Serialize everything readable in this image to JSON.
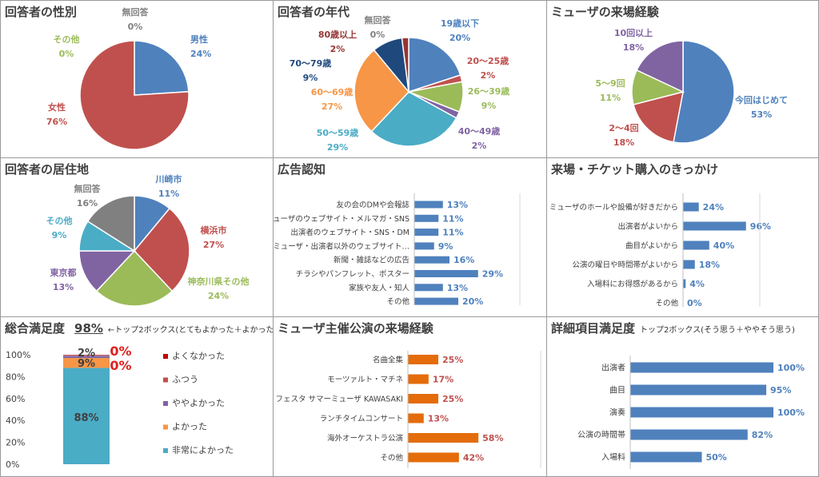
{
  "colors": {
    "blue": "#4f81bd",
    "red": "#c0504d",
    "green": "#9bbb59",
    "purple": "#8064a2",
    "teal": "#4bacc6",
    "orange": "#f79646",
    "navy": "#1f497d",
    "maroon": "#953735",
    "gray": "#808080",
    "darkorange": "#e46c0a"
  },
  "charts": {
    "gender": {
      "title": "回答者の性別",
      "chart_data": {
        "type": "pie",
        "title": "回答者の性別",
        "slices": [
          {
            "label": "男性",
            "value": 24,
            "pct": "24%",
            "color": "#4f81bd"
          },
          {
            "label": "女性",
            "value": 76,
            "pct": "76%",
            "color": "#c0504d"
          },
          {
            "label": "その他",
            "value": 0,
            "pct": "0%",
            "color": "#9bbb59"
          },
          {
            "label": "無回答",
            "value": 0,
            "pct": "0%",
            "color": "#808080"
          }
        ]
      }
    },
    "age": {
      "title": "回答者の年代",
      "chart_data": {
        "type": "pie",
        "title": "回答者の年代",
        "slices": [
          {
            "label": "19歳以下",
            "value": 20,
            "pct": "20%",
            "color": "#4f81bd"
          },
          {
            "label": "20～25歳",
            "value": 2,
            "pct": "2%",
            "color": "#c0504d"
          },
          {
            "label": "26～39歳",
            "value": 9,
            "pct": "9%",
            "color": "#9bbb59"
          },
          {
            "label": "40～49歳",
            "value": 2,
            "pct": "2%",
            "color": "#8064a2"
          },
          {
            "label": "50～59歳",
            "value": 29,
            "pct": "29%",
            "color": "#4bacc6"
          },
          {
            "label": "60～69歳",
            "value": 27,
            "pct": "27%",
            "color": "#f79646"
          },
          {
            "label": "70～79歳",
            "value": 9,
            "pct": "9%",
            "color": "#1f497d"
          },
          {
            "label": "80歳以上",
            "value": 2,
            "pct": "2%",
            "color": "#953735"
          },
          {
            "label": "無回答",
            "value": 0,
            "pct": "0%",
            "color": "#808080"
          }
        ]
      }
    },
    "visits": {
      "title": "ミューザの来場経験",
      "chart_data": {
        "type": "pie",
        "title": "ミューザの来場経験",
        "slices": [
          {
            "label": "今回はじめて",
            "value": 53,
            "pct": "53%",
            "color": "#4f81bd"
          },
          {
            "label": "2～4回",
            "value": 18,
            "pct": "18%",
            "color": "#c0504d"
          },
          {
            "label": "5～9回",
            "value": 11,
            "pct": "11%",
            "color": "#9bbb59"
          },
          {
            "label": "10回以上",
            "value": 18,
            "pct": "18%",
            "color": "#8064a2"
          }
        ]
      }
    },
    "residence": {
      "title": "回答者の居住地",
      "chart_data": {
        "type": "pie",
        "title": "回答者の居住地",
        "slices": [
          {
            "label": "川崎市",
            "value": 11,
            "pct": "11%",
            "color": "#4f81bd"
          },
          {
            "label": "横浜市",
            "value": 27,
            "pct": "27%",
            "color": "#c0504d"
          },
          {
            "label": "神奈川県その他",
            "value": 24,
            "pct": "24%",
            "color": "#9bbb59"
          },
          {
            "label": "東京都",
            "value": 13,
            "pct": "13%",
            "color": "#8064a2"
          },
          {
            "label": "その他",
            "value": 9,
            "pct": "9%",
            "color": "#4bacc6"
          },
          {
            "label": "無回答",
            "value": 16,
            "pct": "16%",
            "color": "#808080"
          }
        ]
      }
    },
    "ads": {
      "title": "広告認知",
      "chart_data": {
        "type": "bar",
        "title": "広告認知",
        "xlim": [
          0,
          100
        ],
        "color": "#4f81bd",
        "categories": [
          "友の会のDMや会報誌",
          "ミューザのウェブサイト・メルマガ・SNS",
          "出演者のウェブサイト・SNS・DM",
          "ミューザ・出演者以外のウェブサイト…",
          "新聞・雑誌などの広告",
          "チラシやパンフレット、ポスター",
          "家族や友人・知人",
          "その他"
        ],
        "values": [
          13,
          11,
          11,
          9,
          16,
          29,
          13,
          20
        ],
        "labels": [
          "13%",
          "11%",
          "11%",
          "9%",
          "16%",
          "29%",
          "13%",
          "20%"
        ]
      }
    },
    "trigger": {
      "title": "来場・チケット購入のきっかけ",
      "chart_data": {
        "type": "bar",
        "title": "来場・チケット購入のきっかけ",
        "xlim": [
          0,
          100
        ],
        "color": "#4f81bd",
        "categories": [
          "ミューザのホールや設備が好きだから",
          "出演者がよいから",
          "曲目がよいから",
          "公演の曜日や時間帯がよいから",
          "入場料にお得感があるから",
          "その他"
        ],
        "values": [
          24,
          96,
          40,
          18,
          4,
          0
        ],
        "labels": [
          "24%",
          "96%",
          "40%",
          "18%",
          "4%",
          "0%"
        ]
      }
    },
    "overall": {
      "title": "総合満足度",
      "headline": "98%",
      "subtitle": "←トップ2ボックス(とてもよかった＋よかった)",
      "chart_data": {
        "type": "stacked-bar",
        "title": "総合満足度",
        "ylim": [
          0,
          100
        ],
        "yticks": [
          "0%",
          "20%",
          "40%",
          "60%",
          "80%",
          "100%"
        ],
        "series": [
          {
            "name": "非常によかった",
            "value": 88,
            "label": "88%",
            "color": "#4bacc6"
          },
          {
            "name": "よかった",
            "value": 9,
            "label": "9%",
            "color": "#f79646"
          },
          {
            "name": "ややよかった",
            "value": 2,
            "label": "2%",
            "color": "#8064a2"
          },
          {
            "name": "ふつう",
            "value": 0,
            "label": "0%",
            "color": "#c0504d"
          },
          {
            "name": "よくなかった",
            "value": 0,
            "label": "0%",
            "color": "#c00000"
          }
        ]
      }
    },
    "muza": {
      "title": "ミューザ主催公演の来場経験",
      "chart_data": {
        "type": "bar",
        "title": "ミューザ主催公演の来場経験",
        "xlim": [
          0,
          100
        ],
        "color": "#e46c0a",
        "categories": [
          "名曲全集",
          "モーツァルト・マチネ",
          "フェスタ サマーミューザ KAWASAKI",
          "ランチタイムコンサート",
          "海外オーケストラ公演",
          "その他"
        ],
        "values": [
          25,
          17,
          25,
          13,
          58,
          42
        ],
        "labels": [
          "25%",
          "17%",
          "25%",
          "13%",
          "58%",
          "42%"
        ]
      }
    },
    "detail": {
      "title": "詳細項目満足度",
      "subtitle": "トップ2ボックス(そう思う＋ややそう思う)",
      "chart_data": {
        "type": "bar",
        "title": "詳細項目満足度",
        "xlim": [
          0,
          100
        ],
        "color": "#4f81bd",
        "categories": [
          "出演者",
          "曲目",
          "演奏",
          "公演の時間帯",
          "入場料"
        ],
        "values": [
          100,
          95,
          100,
          82,
          50
        ],
        "labels": [
          "100%",
          "95%",
          "100%",
          "82%",
          "50%"
        ]
      }
    }
  }
}
